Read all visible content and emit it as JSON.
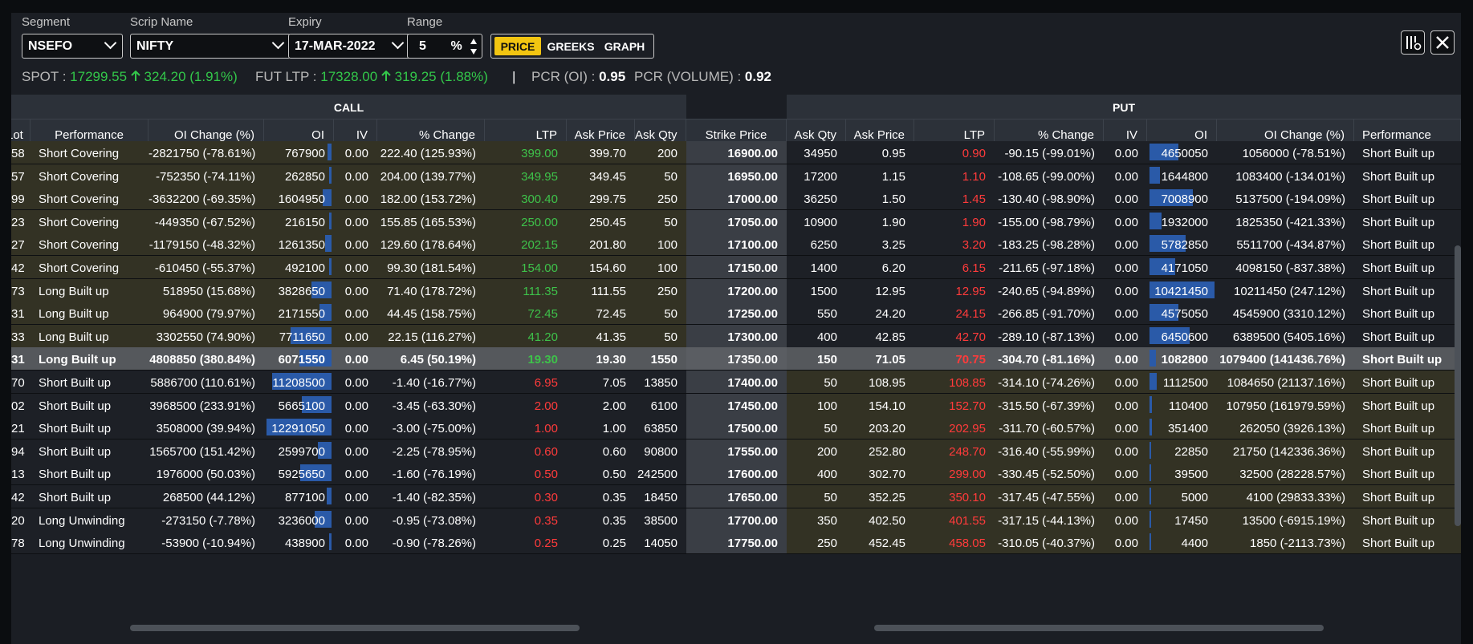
{
  "controls": {
    "segment": {
      "label": "Segment",
      "value": "NSEFO"
    },
    "scrip": {
      "label": "Scrip Name",
      "value": "NIFTY"
    },
    "expiry": {
      "label": "Expiry",
      "value": "17-MAR-2022"
    },
    "range": {
      "label": "Range",
      "value": "5",
      "unit": "%"
    },
    "view_tabs": [
      {
        "label": "PRICE",
        "active": true
      },
      {
        "label": "GREEKS",
        "active": false
      },
      {
        "label": "GRAPH",
        "active": false
      }
    ],
    "icons": [
      "settings-sliders-icon",
      "close-icon"
    ]
  },
  "ticker": {
    "spot_label": "SPOT :",
    "spot_value": "17299.55",
    "spot_change": "324.20 (1.91%)",
    "fut_label": "FUT LTP :",
    "fut_value": "17328.00",
    "fut_change": "319.25 (1.88%)",
    "separator": "|",
    "pcr_oi_label": "PCR (OI) :",
    "pcr_oi_value": "0.95",
    "pcr_vol_label": "PCR (VOLUME) :",
    "pcr_vol_value": "0.92",
    "up_arrow_icon": "arrow-up-icon",
    "up_color": "#33c84a"
  },
  "table": {
    "call_title": "CALL",
    "put_title": "PUT",
    "headers": {
      "call": [
        "Lot",
        "Performance",
        "OI Change (%)",
        "OI",
        "IV",
        "% Change",
        "LTP",
        "Ask Price",
        "Ask Qty"
      ],
      "strike": "Strike Price",
      "put": [
        "Ask Qty",
        "Ask Price",
        "LTP",
        "% Change",
        "IV",
        "OI",
        "OI Change (%)",
        "Performance"
      ]
    },
    "bar_color": "#2a5aa8",
    "rows": [
      {
        "c_lot": "58",
        "c_perf": "Short Covering",
        "c_oichg": "-2821750 (-78.61%)",
        "c_oi": "767900",
        "c_oi_frac": 0.06,
        "c_iv": "0.00",
        "c_pct": "222.40 (125.93%)",
        "c_ltp": "399.00",
        "c_ask": "399.70",
        "c_askqty": "200",
        "strike": "16900.00",
        "p_askqty": "34950",
        "p_ask": "0.95",
        "p_ltp": "0.90",
        "p_pct": "-90.15 (-99.01%)",
        "p_iv": "0.00",
        "p_oi": "4650050",
        "p_oi_frac": 0.45,
        "p_oichg": "1056000 (-78.51%)",
        "p_perf": "Short Built up"
      },
      {
        "c_lot": "57",
        "c_perf": "Short Covering",
        "c_oichg": "-752350 (-74.11%)",
        "c_oi": "262850",
        "c_oi_frac": 0.02,
        "c_iv": "0.00",
        "c_pct": "204.00 (139.77%)",
        "c_ltp": "349.95",
        "c_ask": "349.45",
        "c_askqty": "50",
        "strike": "16950.00",
        "p_askqty": "17200",
        "p_ask": "1.15",
        "p_ltp": "1.10",
        "p_pct": "-108.65 (-99.00%)",
        "p_iv": "0.00",
        "p_oi": "1644800",
        "p_oi_frac": 0.16,
        "p_oichg": "1083400 (-134.01%)",
        "p_perf": "Short Built up"
      },
      {
        "c_lot": "99",
        "c_perf": "Short Covering",
        "c_oichg": "-3632200 (-69.35%)",
        "c_oi": "1604950",
        "c_oi_frac": 0.13,
        "c_iv": "0.00",
        "c_pct": "182.00 (153.72%)",
        "c_ltp": "300.40",
        "c_ask": "299.75",
        "c_askqty": "250",
        "strike": "17000.00",
        "p_askqty": "36250",
        "p_ask": "1.50",
        "p_ltp": "1.45",
        "p_pct": "-130.40 (-98.90%)",
        "p_iv": "0.00",
        "p_oi": "7008900",
        "p_oi_frac": 0.67,
        "p_oichg": "5137500 (-194.09%)",
        "p_perf": "Short Built up"
      },
      {
        "c_lot": "23",
        "c_perf": "Short Covering",
        "c_oichg": "-449350 (-67.52%)",
        "c_oi": "216150",
        "c_oi_frac": 0.02,
        "c_iv": "0.00",
        "c_pct": "155.85 (165.53%)",
        "c_ltp": "250.00",
        "c_ask": "250.45",
        "c_askqty": "50",
        "strike": "17050.00",
        "p_askqty": "10900",
        "p_ask": "1.90",
        "p_ltp": "1.90",
        "p_pct": "-155.00 (-98.79%)",
        "p_iv": "0.00",
        "p_oi": "1932000",
        "p_oi_frac": 0.18,
        "p_oichg": "1825350 (-421.33%)",
        "p_perf": "Short Built up"
      },
      {
        "c_lot": "27",
        "c_perf": "Short Covering",
        "c_oichg": "-1179150 (-48.32%)",
        "c_oi": "1261350",
        "c_oi_frac": 0.1,
        "c_iv": "0.00",
        "c_pct": "129.60 (178.64%)",
        "c_ltp": "202.15",
        "c_ask": "201.80",
        "c_askqty": "100",
        "strike": "17100.00",
        "p_askqty": "6250",
        "p_ask": "3.25",
        "p_ltp": "3.20",
        "p_pct": "-183.25 (-98.28%)",
        "p_iv": "0.00",
        "p_oi": "5782850",
        "p_oi_frac": 0.55,
        "p_oichg": "5511700 (-434.87%)",
        "p_perf": "Short Built up"
      },
      {
        "c_lot": "42",
        "c_perf": "Short Covering",
        "c_oichg": "-610450 (-55.37%)",
        "c_oi": "492100",
        "c_oi_frac": 0.04,
        "c_iv": "0.00",
        "c_pct": "99.30 (181.54%)",
        "c_ltp": "154.00",
        "c_ask": "154.60",
        "c_askqty": "100",
        "strike": "17150.00",
        "p_askqty": "1400",
        "p_ask": "6.20",
        "p_ltp": "6.15",
        "p_pct": "-211.65 (-97.18%)",
        "p_iv": "0.00",
        "p_oi": "4171050",
        "p_oi_frac": 0.4,
        "p_oichg": "4098150 (-837.38%)",
        "p_perf": "Short Built up"
      },
      {
        "c_lot": "73",
        "c_perf": "Long Built up",
        "c_oichg": "518950 (15.68%)",
        "c_oi": "3828650",
        "c_oi_frac": 0.31,
        "c_iv": "0.00",
        "c_pct": "71.40 (178.72%)",
        "c_ltp": "111.35",
        "c_ask": "111.55",
        "c_askqty": "250",
        "strike": "17200.00",
        "p_askqty": "1500",
        "p_ask": "12.95",
        "p_ltp": "12.95",
        "p_pct": "-240.65 (-94.89%)",
        "p_iv": "0.00",
        "p_oi": "10421450",
        "p_oi_frac": 1.0,
        "p_oichg": "10211450 (247.12%)",
        "p_perf": "Short Built up"
      },
      {
        "c_lot": "31",
        "c_perf": "Long Built up",
        "c_oichg": "964900 (79.97%)",
        "c_oi": "2171550",
        "c_oi_frac": 0.18,
        "c_iv": "0.00",
        "c_pct": "44.45 (158.75%)",
        "c_ltp": "72.45",
        "c_ask": "72.45",
        "c_askqty": "50",
        "strike": "17250.00",
        "p_askqty": "550",
        "p_ask": "24.20",
        "p_ltp": "24.15",
        "p_pct": "-266.85 (-91.70%)",
        "p_iv": "0.00",
        "p_oi": "4575050",
        "p_oi_frac": 0.44,
        "p_oichg": "4545900 (3310.12%)",
        "p_perf": "Short Built up"
      },
      {
        "c_lot": "33",
        "c_perf": "Long Built up",
        "c_oichg": "3302550 (74.90%)",
        "c_oi": "7711650",
        "c_oi_frac": 0.63,
        "c_iv": "0.00",
        "c_pct": "22.15 (116.27%)",
        "c_ltp": "41.20",
        "c_ask": "41.35",
        "c_askqty": "50",
        "strike": "17300.00",
        "p_askqty": "400",
        "p_ask": "42.85",
        "p_ltp": "42.70",
        "p_pct": "-289.10 (-87.13%)",
        "p_iv": "0.00",
        "p_oi": "6450600",
        "p_oi_frac": 0.62,
        "p_oichg": "6389500 (5405.16%)",
        "p_perf": "Short Built up"
      },
      {
        "c_lot": "31",
        "c_perf": "Long Built up",
        "c_oichg": "4808850 (380.84%)",
        "c_oi": "6071550",
        "c_oi_frac": 0.49,
        "c_iv": "0.00",
        "c_pct": "6.45 (50.19%)",
        "c_ltp": "19.30",
        "c_ask": "19.30",
        "c_askqty": "1550",
        "strike": "17350.00",
        "p_askqty": "150",
        "p_ask": "71.05",
        "p_ltp": "70.75",
        "p_pct": "-304.70 (-81.16%)",
        "p_iv": "0.00",
        "p_oi": "1082800",
        "p_oi_frac": 0.1,
        "p_oichg": "1079400 (141436.76%)",
        "p_perf": "Short Built up",
        "atm": true
      },
      {
        "c_lot": "70",
        "c_perf": "Short Built up",
        "c_oichg": "5886700 (110.61%)",
        "c_oi": "11208500",
        "c_oi_frac": 0.91,
        "c_iv": "0.00",
        "c_pct": "-1.40 (-16.77%)",
        "c_ltp": "6.95",
        "c_ask": "7.05",
        "c_askqty": "13850",
        "strike": "17400.00",
        "p_askqty": "50",
        "p_ask": "108.95",
        "p_ltp": "108.85",
        "p_pct": "-314.10 (-74.26%)",
        "p_iv": "0.00",
        "p_oi": "1112500",
        "p_oi_frac": 0.11,
        "p_oichg": "1084650 (21137.16%)",
        "p_perf": "Short Built up"
      },
      {
        "c_lot": "02",
        "c_perf": "Short Built up",
        "c_oichg": "3968500 (233.91%)",
        "c_oi": "5665100",
        "c_oi_frac": 0.46,
        "c_iv": "0.00",
        "c_pct": "-3.45 (-63.30%)",
        "c_ltp": "2.00",
        "c_ask": "2.00",
        "c_askqty": "6100",
        "strike": "17450.00",
        "p_askqty": "100",
        "p_ask": "154.10",
        "p_ltp": "152.70",
        "p_pct": "-315.50 (-67.39%)",
        "p_iv": "0.00",
        "p_oi": "110400",
        "p_oi_frac": 0.01,
        "p_oichg": "107950 (161979.59%)",
        "p_perf": "Short Built up"
      },
      {
        "c_lot": "21",
        "c_perf": "Short Built up",
        "c_oichg": "3508000 (39.94%)",
        "c_oi": "12291050",
        "c_oi_frac": 1.0,
        "c_iv": "0.00",
        "c_pct": "-3.00 (-75.00%)",
        "c_ltp": "1.00",
        "c_ask": "1.00",
        "c_askqty": "63850",
        "strike": "17500.00",
        "p_askqty": "50",
        "p_ask": "203.20",
        "p_ltp": "202.95",
        "p_pct": "-311.70 (-60.57%)",
        "p_iv": "0.00",
        "p_oi": "351400",
        "p_oi_frac": 0.03,
        "p_oichg": "262050 (3926.13%)",
        "p_perf": "Short Built up"
      },
      {
        "c_lot": "94",
        "c_perf": "Short Built up",
        "c_oichg": "1565700 (151.42%)",
        "c_oi": "2599700",
        "c_oi_frac": 0.21,
        "c_iv": "0.00",
        "c_pct": "-2.25 (-78.95%)",
        "c_ltp": "0.60",
        "c_ask": "0.60",
        "c_askqty": "90800",
        "strike": "17550.00",
        "p_askqty": "200",
        "p_ask": "252.80",
        "p_ltp": "248.70",
        "p_pct": "-316.40 (-55.99%)",
        "p_iv": "0.00",
        "p_oi": "22850",
        "p_oi_frac": 0.0,
        "p_oichg": "21750 (142336.36%)",
        "p_perf": "Short Built up"
      },
      {
        "c_lot": "13",
        "c_perf": "Short Built up",
        "c_oichg": "1976000 (50.03%)",
        "c_oi": "5925650",
        "c_oi_frac": 0.48,
        "c_iv": "0.00",
        "c_pct": "-1.60 (-76.19%)",
        "c_ltp": "0.50",
        "c_ask": "0.50",
        "c_askqty": "242500",
        "strike": "17600.00",
        "p_askqty": "400",
        "p_ask": "302.70",
        "p_ltp": "299.00",
        "p_pct": "-330.45 (-52.50%)",
        "p_iv": "0.00",
        "p_oi": "39500",
        "p_oi_frac": 0.0,
        "p_oichg": "32500 (28228.57%)",
        "p_perf": "Short Built up"
      },
      {
        "c_lot": "42",
        "c_perf": "Short Built up",
        "c_oichg": "268500 (44.12%)",
        "c_oi": "877100",
        "c_oi_frac": 0.07,
        "c_iv": "0.00",
        "c_pct": "-1.40 (-82.35%)",
        "c_ltp": "0.30",
        "c_ask": "0.35",
        "c_askqty": "18450",
        "strike": "17650.00",
        "p_askqty": "50",
        "p_ask": "352.25",
        "p_ltp": "350.10",
        "p_pct": "-317.45 (-47.55%)",
        "p_iv": "0.00",
        "p_oi": "5000",
        "p_oi_frac": 0.0,
        "p_oichg": "4100 (29833.33%)",
        "p_perf": "Short Built up"
      },
      {
        "c_lot": "20",
        "c_perf": "Long Unwinding",
        "c_oichg": "-273150 (-7.78%)",
        "c_oi": "3236000",
        "c_oi_frac": 0.26,
        "c_iv": "0.00",
        "c_pct": "-0.95 (-73.08%)",
        "c_ltp": "0.35",
        "c_ask": "0.35",
        "c_askqty": "38500",
        "strike": "17700.00",
        "p_askqty": "350",
        "p_ask": "402.50",
        "p_ltp": "401.55",
        "p_pct": "-317.15 (-44.13%)",
        "p_iv": "0.00",
        "p_oi": "17450",
        "p_oi_frac": 0.0,
        "p_oichg": "13500 (-6915.19%)",
        "p_perf": "Short Built up"
      },
      {
        "c_lot": "78",
        "c_perf": "Long Unwinding",
        "c_oichg": "-53900 (-10.94%)",
        "c_oi": "438900",
        "c_oi_frac": 0.04,
        "c_iv": "0.00",
        "c_pct": "-0.90 (-78.26%)",
        "c_ltp": "0.25",
        "c_ask": "0.25",
        "c_askqty": "14050",
        "strike": "17750.00",
        "p_askqty": "250",
        "p_ask": "452.45",
        "p_ltp": "458.05",
        "p_pct": "-310.05 (-40.37%)",
        "p_iv": "0.00",
        "p_oi": "4400",
        "p_oi_frac": 0.0,
        "p_oichg": "1850 (-2113.73%)",
        "p_perf": "Short Built up"
      }
    ]
  }
}
